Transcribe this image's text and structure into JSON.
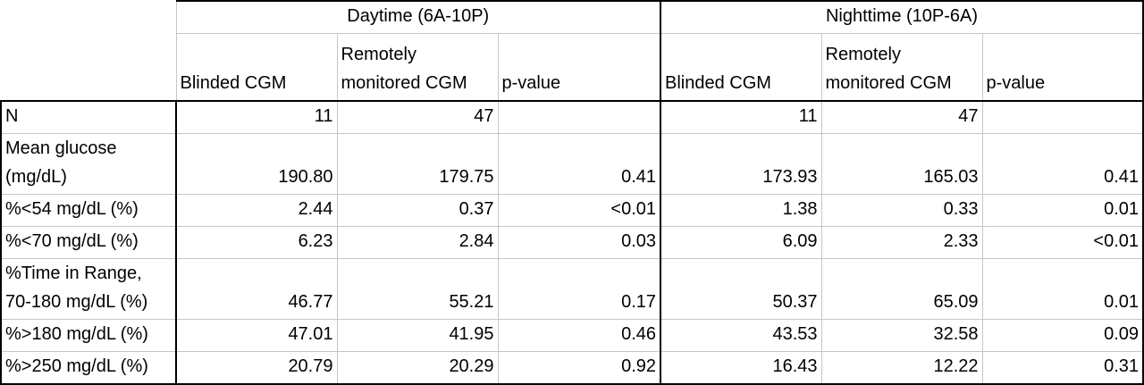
{
  "table": {
    "groups": [
      "Daytime (6A-10P)",
      "Nighttime (10P-6A)"
    ],
    "headers": [
      [
        "Blinded CGM"
      ],
      [
        "Remotely",
        "monitored CGM"
      ],
      [
        "p-value"
      ],
      [
        "Blinded CGM"
      ],
      [
        "Remotely",
        "monitored CGM"
      ],
      [
        "p-value"
      ]
    ],
    "rows": [
      {
        "label": [
          "N"
        ],
        "cells": [
          "11",
          "47",
          null,
          "11",
          "47",
          null
        ]
      },
      {
        "label": [
          "Mean glucose",
          "(mg/dL)"
        ],
        "cells": [
          "190.80",
          "179.75",
          "0.41",
          "173.93",
          "165.03",
          "0.41"
        ]
      },
      {
        "label": [
          "%<54 mg/dL (%)"
        ],
        "cells": [
          "2.44",
          "0.37",
          "<0.01",
          "1.38",
          "0.33",
          "0.01"
        ]
      },
      {
        "label": [
          "%<70 mg/dL (%)"
        ],
        "cells": [
          "6.23",
          "2.84",
          "0.03",
          "6.09",
          "2.33",
          "<0.01"
        ]
      },
      {
        "label": [
          "%Time in Range,",
          "70-180 mg/dL (%)"
        ],
        "cells": [
          "46.77",
          "55.21",
          "0.17",
          "50.37",
          "65.09",
          "0.01"
        ]
      },
      {
        "label": [
          "%>180 mg/dL (%)"
        ],
        "cells": [
          "47.01",
          "41.95",
          "0.46",
          "43.53",
          "32.58",
          "0.09"
        ]
      },
      {
        "label": [
          "%>250 mg/dL (%)"
        ],
        "cells": [
          "20.79",
          "20.29",
          "0.92",
          "16.43",
          "12.22",
          "0.31"
        ]
      }
    ]
  }
}
